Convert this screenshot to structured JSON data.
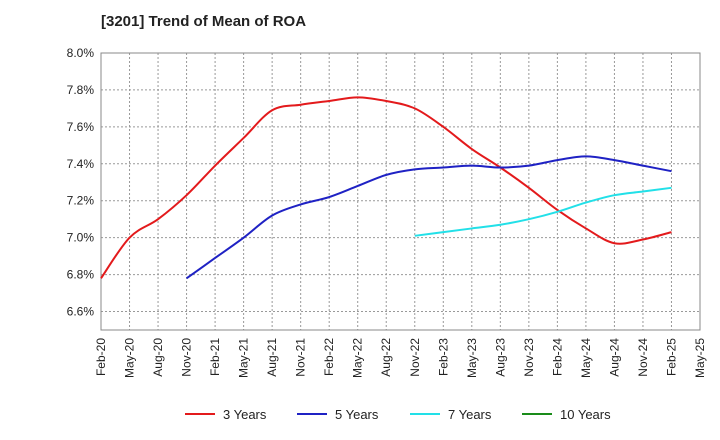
{
  "chart_data": {
    "type": "line",
    "title": "[3201]  Trend of Mean of ROA",
    "xlabel": "",
    "ylabel": "",
    "x_ticks": [
      "Feb-20",
      "May-20",
      "Aug-20",
      "Nov-20",
      "Feb-21",
      "May-21",
      "Aug-21",
      "Nov-21",
      "Feb-22",
      "May-22",
      "Aug-22",
      "Nov-22",
      "Feb-23",
      "May-23",
      "Aug-23",
      "Nov-23",
      "Feb-24",
      "May-24",
      "Aug-24",
      "Nov-24",
      "Feb-25",
      "May-25"
    ],
    "y_ticks": [
      "6.6%",
      "6.8%",
      "7.0%",
      "7.2%",
      "7.4%",
      "7.6%",
      "7.8%",
      "8.0%"
    ],
    "y_tick_values": [
      6.6,
      6.8,
      7.0,
      7.2,
      7.4,
      7.6,
      7.8,
      8.0
    ],
    "ylim": [
      6.5,
      8.0
    ],
    "grid": true,
    "legend_position": "bottom",
    "series": [
      {
        "name": "3 Years",
        "color": "#e31a1c",
        "x": [
          "Feb-20",
          "May-20",
          "Aug-20",
          "Nov-20",
          "Feb-21",
          "May-21",
          "Aug-21",
          "Nov-21",
          "Feb-22",
          "May-22",
          "Aug-22",
          "Nov-22",
          "Feb-23",
          "May-23",
          "Aug-23",
          "Nov-23",
          "Feb-24",
          "May-24",
          "Aug-24",
          "Nov-24",
          "Feb-25"
        ],
        "values": [
          6.78,
          7.0,
          7.1,
          7.23,
          7.39,
          7.54,
          7.69,
          7.72,
          7.74,
          7.76,
          7.74,
          7.7,
          7.6,
          7.48,
          7.38,
          7.27,
          7.15,
          7.05,
          6.97,
          6.99,
          7.03
        ]
      },
      {
        "name": "5 Years",
        "color": "#1f22c4",
        "x": [
          "Nov-20",
          "Feb-21",
          "May-21",
          "Aug-21",
          "Nov-21",
          "Feb-22",
          "May-22",
          "Aug-22",
          "Nov-22",
          "Feb-23",
          "May-23",
          "Aug-23",
          "Nov-23",
          "Feb-24",
          "May-24",
          "Aug-24",
          "Nov-24",
          "Feb-25"
        ],
        "values": [
          6.78,
          6.89,
          7.0,
          7.12,
          7.18,
          7.22,
          7.28,
          7.34,
          7.37,
          7.38,
          7.39,
          7.38,
          7.39,
          7.42,
          7.44,
          7.42,
          7.39,
          7.36
        ]
      },
      {
        "name": "7 Years",
        "color": "#22e0e8",
        "x": [
          "Nov-22",
          "Feb-23",
          "May-23",
          "Aug-23",
          "Nov-23",
          "Feb-24",
          "May-24",
          "Aug-24",
          "Nov-24",
          "Feb-25"
        ],
        "values": [
          7.01,
          7.03,
          7.05,
          7.07,
          7.1,
          7.14,
          7.19,
          7.23,
          7.25,
          7.27
        ]
      },
      {
        "name": "10 Years",
        "color": "#1a8c1a",
        "x": [],
        "values": []
      }
    ]
  }
}
